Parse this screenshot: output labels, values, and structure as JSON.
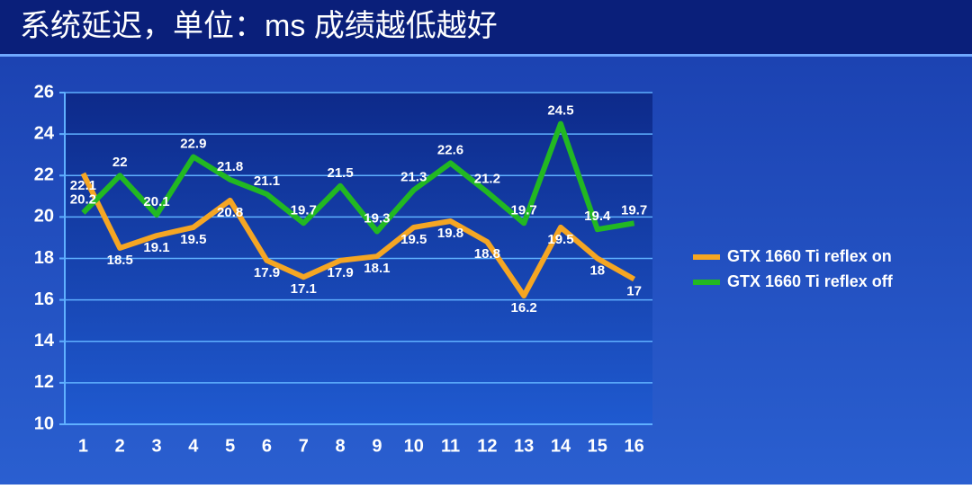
{
  "chart_data": {
    "type": "line",
    "title": "系统延迟，单位：ms 成绩越低越好",
    "categories": [
      "1",
      "2",
      "3",
      "4",
      "5",
      "6",
      "7",
      "8",
      "9",
      "10",
      "11",
      "12",
      "13",
      "14",
      "15",
      "16"
    ],
    "series": [
      {
        "name": "GTX 1660 Ti reflex on",
        "color": "#f5a623",
        "values": [
          22.1,
          18.5,
          19.1,
          19.5,
          20.8,
          17.9,
          17.1,
          17.9,
          18.1,
          19.5,
          19.8,
          18.8,
          16.2,
          19.5,
          18,
          17
        ]
      },
      {
        "name": "GTX 1660 Ti reflex off",
        "color": "#22b822",
        "values": [
          20.2,
          22,
          20.1,
          22.9,
          21.8,
          21.1,
          19.7,
          21.5,
          19.3,
          21.3,
          22.6,
          21.2,
          19.7,
          24.5,
          19.4,
          19.7
        ]
      }
    ],
    "ylim": [
      10,
      26
    ],
    "yticks": [
      10,
      12,
      14,
      16,
      18,
      20,
      22,
      24,
      26
    ],
    "grid": true,
    "legend": "right"
  }
}
